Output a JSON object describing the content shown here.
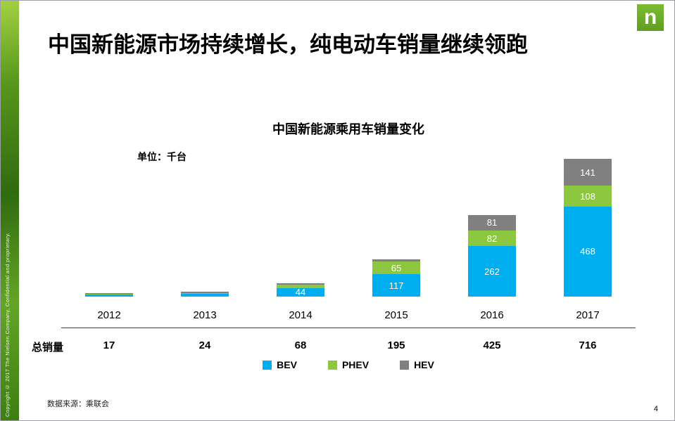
{
  "slide": {
    "title": "中国新能源市场持续增长，纯电动车销量继续领跑",
    "logo_letter": "n",
    "copyright": "Copyright © 2017 The Nielsen Company, Confidential and proprietary.",
    "source": "数据来源：乘联会",
    "page_number": "4"
  },
  "chart_data": {
    "type": "bar",
    "stacked": true,
    "title": "中国新能源乘用车销量变化",
    "unit_label": "单位：千台",
    "categories": [
      "2012",
      "2013",
      "2014",
      "2015",
      "2016",
      "2017"
    ],
    "series": [
      {
        "name": "BEV",
        "color": "#00AEEF",
        "values": [
          12,
          16,
          44,
          117,
          262,
          468
        ]
      },
      {
        "name": "PHEV",
        "color": "#8DC63F",
        "values": [
          2,
          3,
          18,
          65,
          82,
          108
        ]
      },
      {
        "name": "HEV",
        "color": "#808080",
        "values": [
          3,
          5,
          6,
          13,
          81,
          141
        ]
      }
    ],
    "visible_value_labels": [
      44,
      117,
      65,
      262,
      82,
      81,
      468,
      108,
      141
    ],
    "totals_label": "总销量",
    "totals": [
      17,
      24,
      68,
      195,
      425,
      716
    ],
    "ylim": [
      0,
      720
    ],
    "grid": false,
    "legend_position": "bottom",
    "legend": [
      "BEV",
      "PHEV",
      "HEV"
    ]
  }
}
